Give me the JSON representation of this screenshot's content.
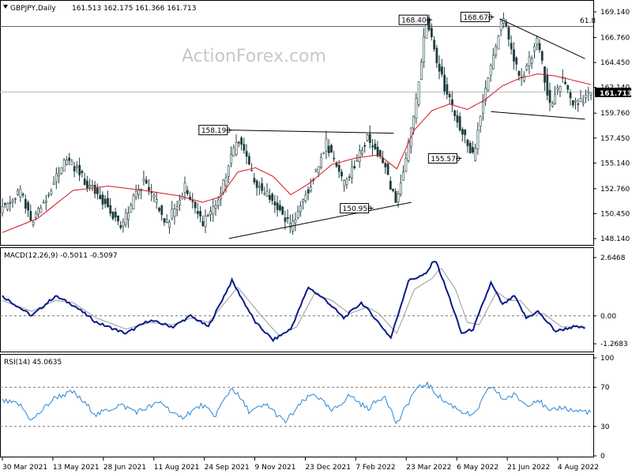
{
  "chart_data": [
    {
      "type": "candlestick",
      "title": "GBPJPY,Daily",
      "ohlc_label": "161.513 162.175 161.366 161.713",
      "watermark": "ActionForex.com",
      "last_price": "161.713",
      "ylim": [
        147.7,
        169.8
      ],
      "y_ticks": [
        "169.140",
        "166.760",
        "164.450",
        "162.140",
        "159.760",
        "157.450",
        "155.140",
        "152.760",
        "150.450",
        "148.140"
      ],
      "fib_label": "61.8",
      "fib_level": 167.79,
      "x_ticks": [
        "30 Mar 2021",
        "13 May 2021",
        "28 Jun 2021",
        "11 Aug 2021",
        "24 Sep 2021",
        "9 Nov 2021",
        "23 Dec 2021",
        "7 Feb 2022",
        "23 Mar 2022",
        "6 May 2022",
        "21 Jun 2022",
        "4 Aug 2022"
      ],
      "price_path": [
        {
          "x": 0,
          "y": 151.0
        },
        {
          "x": 0.03,
          "y": 152.5
        },
        {
          "x": 0.05,
          "y": 149.4
        },
        {
          "x": 0.08,
          "y": 152.6
        },
        {
          "x": 0.11,
          "y": 155.7
        },
        {
          "x": 0.15,
          "y": 152.8
        },
        {
          "x": 0.18,
          "y": 151.2
        },
        {
          "x": 0.2,
          "y": 149.2
        },
        {
          "x": 0.24,
          "y": 153.6
        },
        {
          "x": 0.28,
          "y": 149.5
        },
        {
          "x": 0.31,
          "y": 152.9
        },
        {
          "x": 0.34,
          "y": 149.6
        },
        {
          "x": 0.37,
          "y": 152.2
        },
        {
          "x": 0.4,
          "y": 157.5
        },
        {
          "x": 0.43,
          "y": 153.2
        },
        {
          "x": 0.46,
          "y": 151.6
        },
        {
          "x": 0.49,
          "y": 149.2
        },
        {
          "x": 0.52,
          "y": 152.8
        },
        {
          "x": 0.55,
          "y": 157.0
        },
        {
          "x": 0.58,
          "y": 153.0
        },
        {
          "x": 0.62,
          "y": 157.5
        },
        {
          "x": 0.65,
          "y": 154.8
        },
        {
          "x": 0.67,
          "y": 151.2
        },
        {
          "x": 0.7,
          "y": 159.6
        },
        {
          "x": 0.72,
          "y": 168.4
        },
        {
          "x": 0.75,
          "y": 162.3
        },
        {
          "x": 0.78,
          "y": 158.0
        },
        {
          "x": 0.8,
          "y": 155.7
        },
        {
          "x": 0.82,
          "y": 162.0
        },
        {
          "x": 0.85,
          "y": 168.6
        },
        {
          "x": 0.88,
          "y": 162.6
        },
        {
          "x": 0.91,
          "y": 166.5
        },
        {
          "x": 0.93,
          "y": 160.3
        },
        {
          "x": 0.95,
          "y": 163.0
        },
        {
          "x": 0.97,
          "y": 160.5
        },
        {
          "x": 1.0,
          "y": 161.7
        }
      ],
      "ma_path": [
        {
          "x": 0,
          "y": 148.7
        },
        {
          "x": 0.06,
          "y": 150.0
        },
        {
          "x": 0.12,
          "y": 152.6
        },
        {
          "x": 0.18,
          "y": 153.0
        },
        {
          "x": 0.24,
          "y": 152.6
        },
        {
          "x": 0.3,
          "y": 152.1
        },
        {
          "x": 0.34,
          "y": 151.5
        },
        {
          "x": 0.37,
          "y": 152.0
        },
        {
          "x": 0.4,
          "y": 154.3
        },
        {
          "x": 0.43,
          "y": 154.7
        },
        {
          "x": 0.46,
          "y": 153.9
        },
        {
          "x": 0.49,
          "y": 152.2
        },
        {
          "x": 0.52,
          "y": 153.2
        },
        {
          "x": 0.56,
          "y": 155.0
        },
        {
          "x": 0.6,
          "y": 155.6
        },
        {
          "x": 0.64,
          "y": 155.9
        },
        {
          "x": 0.67,
          "y": 154.6
        },
        {
          "x": 0.7,
          "y": 158.2
        },
        {
          "x": 0.73,
          "y": 160.0
        },
        {
          "x": 0.76,
          "y": 160.6
        },
        {
          "x": 0.79,
          "y": 160.1
        },
        {
          "x": 0.82,
          "y": 161.0
        },
        {
          "x": 0.85,
          "y": 162.3
        },
        {
          "x": 0.88,
          "y": 163.0
        },
        {
          "x": 0.91,
          "y": 163.4
        },
        {
          "x": 0.94,
          "y": 163.2
        },
        {
          "x": 0.97,
          "y": 162.8
        },
        {
          "x": 1.0,
          "y": 162.4
        }
      ],
      "annotations": [
        {
          "label": "158.190",
          "x": 0.385,
          "y": 158.19
        },
        {
          "label": "168.400",
          "x": 0.725,
          "y": 168.4
        },
        {
          "label": "168.670",
          "x": 0.83,
          "y": 168.67
        },
        {
          "label": "155.570",
          "x": 0.775,
          "y": 155.57
        },
        {
          "label": "150.950",
          "x": 0.625,
          "y": 150.95
        }
      ],
      "trendlines": [
        {
          "x1": 0.385,
          "y1": 158.19,
          "x2": 0.665,
          "y2": 157.9
        },
        {
          "x1": 0.385,
          "y1": 148.15,
          "x2": 0.695,
          "y2": 151.5
        },
        {
          "x1": 0.845,
          "y1": 168.5,
          "x2": 0.99,
          "y2": 164.8
        },
        {
          "x1": 0.83,
          "y1": 159.9,
          "x2": 0.99,
          "y2": 159.2
        }
      ]
    },
    {
      "type": "line",
      "title": "MACD(12,26,9) -0.5011 -0.5097",
      "ylim": [
        -1.55,
        2.9
      ],
      "y_ticks": [
        "2.6468",
        "0.00",
        "-1.2683"
      ],
      "zero_level": 0.0,
      "series": [
        {
          "name": "MACD",
          "color": "#0a1b8a",
          "points": [
            {
              "x": 0,
              "y": 0.9
            },
            {
              "x": 0.05,
              "y": 0.0
            },
            {
              "x": 0.09,
              "y": 0.9
            },
            {
              "x": 0.12,
              "y": 0.5
            },
            {
              "x": 0.16,
              "y": -0.3
            },
            {
              "x": 0.21,
              "y": -0.8
            },
            {
              "x": 0.25,
              "y": -0.2
            },
            {
              "x": 0.29,
              "y": -0.5
            },
            {
              "x": 0.32,
              "y": 0.0
            },
            {
              "x": 0.35,
              "y": -0.5
            },
            {
              "x": 0.39,
              "y": 1.6
            },
            {
              "x": 0.43,
              "y": -0.3
            },
            {
              "x": 0.46,
              "y": -1.1
            },
            {
              "x": 0.49,
              "y": -0.6
            },
            {
              "x": 0.52,
              "y": 1.3
            },
            {
              "x": 0.55,
              "y": 0.7
            },
            {
              "x": 0.58,
              "y": -0.1
            },
            {
              "x": 0.61,
              "y": 0.6
            },
            {
              "x": 0.63,
              "y": 0.0
            },
            {
              "x": 0.66,
              "y": -1.0
            },
            {
              "x": 0.69,
              "y": 1.6
            },
            {
              "x": 0.72,
              "y": 1.9
            },
            {
              "x": 0.735,
              "y": 2.6
            },
            {
              "x": 0.76,
              "y": 0.8
            },
            {
              "x": 0.78,
              "y": -0.8
            },
            {
              "x": 0.8,
              "y": -0.6
            },
            {
              "x": 0.83,
              "y": 1.5
            },
            {
              "x": 0.85,
              "y": 0.5
            },
            {
              "x": 0.87,
              "y": 0.9
            },
            {
              "x": 0.89,
              "y": -0.1
            },
            {
              "x": 0.91,
              "y": 0.2
            },
            {
              "x": 0.94,
              "y": -0.7
            },
            {
              "x": 0.97,
              "y": -0.5
            },
            {
              "x": 0.99,
              "y": -0.55
            }
          ]
        },
        {
          "name": "Signal",
          "color": "#9a9a9a",
          "points": [
            {
              "x": 0,
              "y": 0.7
            },
            {
              "x": 0.05,
              "y": 0.2
            },
            {
              "x": 0.09,
              "y": 0.7
            },
            {
              "x": 0.12,
              "y": 0.6
            },
            {
              "x": 0.16,
              "y": -0.1
            },
            {
              "x": 0.21,
              "y": -0.6
            },
            {
              "x": 0.25,
              "y": -0.3
            },
            {
              "x": 0.29,
              "y": -0.4
            },
            {
              "x": 0.32,
              "y": -0.1
            },
            {
              "x": 0.35,
              "y": -0.3
            },
            {
              "x": 0.4,
              "y": 1.3
            },
            {
              "x": 0.44,
              "y": 0.0
            },
            {
              "x": 0.47,
              "y": -0.9
            },
            {
              "x": 0.5,
              "y": -0.5
            },
            {
              "x": 0.53,
              "y": 1.0
            },
            {
              "x": 0.56,
              "y": 0.7
            },
            {
              "x": 0.59,
              "y": 0.1
            },
            {
              "x": 0.62,
              "y": 0.4
            },
            {
              "x": 0.64,
              "y": 0.1
            },
            {
              "x": 0.67,
              "y": -0.8
            },
            {
              "x": 0.7,
              "y": 1.2
            },
            {
              "x": 0.73,
              "y": 1.7
            },
            {
              "x": 0.745,
              "y": 2.2
            },
            {
              "x": 0.77,
              "y": 1.2
            },
            {
              "x": 0.79,
              "y": -0.3
            },
            {
              "x": 0.81,
              "y": -0.4
            },
            {
              "x": 0.84,
              "y": 1.1
            },
            {
              "x": 0.86,
              "y": 0.7
            },
            {
              "x": 0.88,
              "y": 0.7
            },
            {
              "x": 0.9,
              "y": 0.1
            },
            {
              "x": 0.92,
              "y": 0.1
            },
            {
              "x": 0.95,
              "y": -0.5
            },
            {
              "x": 0.97,
              "y": -0.5
            },
            {
              "x": 0.99,
              "y": -0.5
            }
          ]
        }
      ]
    },
    {
      "type": "line",
      "title": "RSI(14) 45.0635",
      "ylim": [
        0,
        100
      ],
      "y_ticks": [
        "100",
        "70",
        "30",
        "0"
      ],
      "levels": [
        70,
        30
      ],
      "series": [
        {
          "name": "RSI",
          "color": "#2a86d8",
          "points": [
            {
              "x": 0,
              "y": 56
            },
            {
              "x": 0.03,
              "y": 52
            },
            {
              "x": 0.05,
              "y": 36
            },
            {
              "x": 0.09,
              "y": 60
            },
            {
              "x": 0.12,
              "y": 65
            },
            {
              "x": 0.16,
              "y": 42
            },
            {
              "x": 0.2,
              "y": 52
            },
            {
              "x": 0.23,
              "y": 45
            },
            {
              "x": 0.27,
              "y": 55
            },
            {
              "x": 0.3,
              "y": 38
            },
            {
              "x": 0.34,
              "y": 52
            },
            {
              "x": 0.36,
              "y": 40
            },
            {
              "x": 0.39,
              "y": 70
            },
            {
              "x": 0.42,
              "y": 45
            },
            {
              "x": 0.45,
              "y": 52
            },
            {
              "x": 0.48,
              "y": 34
            },
            {
              "x": 0.51,
              "y": 55
            },
            {
              "x": 0.53,
              "y": 64
            },
            {
              "x": 0.56,
              "y": 45
            },
            {
              "x": 0.59,
              "y": 62
            },
            {
              "x": 0.62,
              "y": 48
            },
            {
              "x": 0.65,
              "y": 62
            },
            {
              "x": 0.67,
              "y": 32
            },
            {
              "x": 0.7,
              "y": 66
            },
            {
              "x": 0.72,
              "y": 74
            },
            {
              "x": 0.75,
              "y": 56
            },
            {
              "x": 0.78,
              "y": 46
            },
            {
              "x": 0.8,
              "y": 40
            },
            {
              "x": 0.83,
              "y": 72
            },
            {
              "x": 0.85,
              "y": 58
            },
            {
              "x": 0.87,
              "y": 62
            },
            {
              "x": 0.89,
              "y": 52
            },
            {
              "x": 0.91,
              "y": 58
            },
            {
              "x": 0.93,
              "y": 44
            },
            {
              "x": 0.95,
              "y": 50
            },
            {
              "x": 0.97,
              "y": 46
            },
            {
              "x": 1.0,
              "y": 45
            }
          ]
        }
      ]
    }
  ]
}
